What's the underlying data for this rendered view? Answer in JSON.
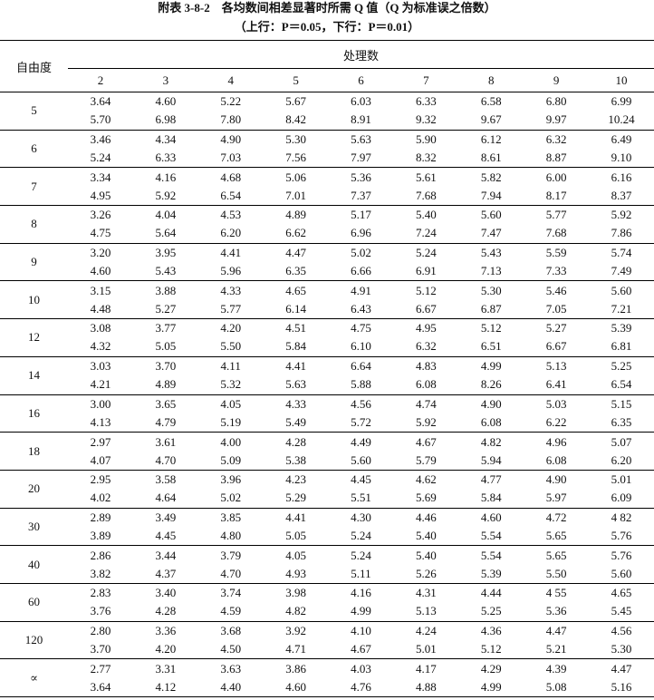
{
  "title": "附表 3-8-2　各均数间相差显著时所需 Q 值（Q 为标准误之倍数）",
  "subtitle": "（上行：P＝0.05，下行：P＝0.01）",
  "table": {
    "row_header": "自由度",
    "group_header": "处理数",
    "columns": [
      "2",
      "3",
      "4",
      "5",
      "6",
      "7",
      "8",
      "9",
      "10"
    ],
    "rows": [
      {
        "df": "5",
        "upper": [
          "3.64",
          "4.60",
          "5.22",
          "5.67",
          "6.03",
          "6.33",
          "6.58",
          "6.80",
          "6.99"
        ],
        "lower": [
          "5.70",
          "6.98",
          "7.80",
          "8.42",
          "8.91",
          "9.32",
          "9.67",
          "9.97",
          "10.24"
        ]
      },
      {
        "df": "6",
        "upper": [
          "3.46",
          "4.34",
          "4.90",
          "5.30",
          "5.63",
          "5.90",
          "6.12",
          "6.32",
          "6.49"
        ],
        "lower": [
          "5.24",
          "6.33",
          "7.03",
          "7.56",
          "7.97",
          "8.32",
          "8.61",
          "8.87",
          "9.10"
        ]
      },
      {
        "df": "7",
        "upper": [
          "3.34",
          "4.16",
          "4.68",
          "5.06",
          "5.36",
          "5.61",
          "5.82",
          "6.00",
          "6.16"
        ],
        "lower": [
          "4.95",
          "5.92",
          "6.54",
          "7.01",
          "7.37",
          "7.68",
          "7.94",
          "8.17",
          "8.37"
        ]
      },
      {
        "df": "8",
        "upper": [
          "3.26",
          "4.04",
          "4.53",
          "4.89",
          "5.17",
          "5.40",
          "5.60",
          "5.77",
          "5.92"
        ],
        "lower": [
          "4.75",
          "5.64",
          "6.20",
          "6.62",
          "6.96",
          "7.24",
          "7.47",
          "7.68",
          "7.86"
        ]
      },
      {
        "df": "9",
        "upper": [
          "3.20",
          "3.95",
          "4.41",
          "4.47",
          "5.02",
          "5.24",
          "5.43",
          "5.59",
          "5.74"
        ],
        "lower": [
          "4.60",
          "5.43",
          "5.96",
          "6.35",
          "6.66",
          "6.91",
          "7.13",
          "7.33",
          "7.49"
        ]
      },
      {
        "df": "10",
        "upper": [
          "3.15",
          "3.88",
          "4.33",
          "4.65",
          "4.91",
          "5.12",
          "5.30",
          "5.46",
          "5.60"
        ],
        "lower": [
          "4.48",
          "5.27",
          "5.77",
          "6.14",
          "6.43",
          "6.67",
          "6.87",
          "7.05",
          "7.21"
        ]
      },
      {
        "df": "12",
        "upper": [
          "3.08",
          "3.77",
          "4.20",
          "4.51",
          "4.75",
          "4.95",
          "5.12",
          "5.27",
          "5.39"
        ],
        "lower": [
          "4.32",
          "5.05",
          "5.50",
          "5.84",
          "6.10",
          "6.32",
          "6.51",
          "6.67",
          "6.81"
        ]
      },
      {
        "df": "14",
        "upper": [
          "3.03",
          "3.70",
          "4.11",
          "4.41",
          "6.64",
          "4.83",
          "4.99",
          "5.13",
          "5.25"
        ],
        "lower": [
          "4.21",
          "4.89",
          "5.32",
          "5.63",
          "5.88",
          "6.08",
          "8.26",
          "6.41",
          "6.54"
        ]
      },
      {
        "df": "16",
        "upper": [
          "3.00",
          "3.65",
          "4.05",
          "4.33",
          "4.56",
          "4.74",
          "4.90",
          "5.03",
          "5.15"
        ],
        "lower": [
          "4.13",
          "4.79",
          "5.19",
          "5.49",
          "5.72",
          "5.92",
          "6.08",
          "6.22",
          "6.35"
        ]
      },
      {
        "df": "18",
        "upper": [
          "2.97",
          "3.61",
          "4.00",
          "4.28",
          "4.49",
          "4.67",
          "4.82",
          "4.96",
          "5.07"
        ],
        "lower": [
          "4.07",
          "4.70",
          "5.09",
          "5.38",
          "5.60",
          "5.79",
          "5.94",
          "6.08",
          "6.20"
        ]
      },
      {
        "df": "20",
        "upper": [
          "2.95",
          "3.58",
          "3.96",
          "4.23",
          "4.45",
          "4.62",
          "4.77",
          "4.90",
          "5.01"
        ],
        "lower": [
          "4.02",
          "4.64",
          "5.02",
          "5.29",
          "5.51",
          "5.69",
          "5.84",
          "5.97",
          "6.09"
        ]
      },
      {
        "df": "30",
        "upper": [
          "2.89",
          "3.49",
          "3.85",
          "4.41",
          "4.30",
          "4.46",
          "4.60",
          "4.72",
          "4 82"
        ],
        "lower": [
          "3.89",
          "4.45",
          "4.80",
          "5.05",
          "5.24",
          "5.40",
          "5.54",
          "5.65",
          "5.76"
        ]
      },
      {
        "df": "40",
        "upper": [
          "2.86",
          "3.44",
          "3.79",
          "4.05",
          "5.24",
          "5.40",
          "5.54",
          "5.65",
          "5.76"
        ],
        "lower": [
          "3.82",
          "4.37",
          "4.70",
          "4.93",
          "5.11",
          "5.26",
          "5.39",
          "5.50",
          "5.60"
        ]
      },
      {
        "df": "60",
        "upper": [
          "2.83",
          "3.40",
          "3.74",
          "3.98",
          "4.16",
          "4.31",
          "4.44",
          "4 55",
          "4.65"
        ],
        "lower": [
          "3.76",
          "4.28",
          "4.59",
          "4.82",
          "4.99",
          "5.13",
          "5.25",
          "5.36",
          "5.45"
        ]
      },
      {
        "df": "120",
        "upper": [
          "2.80",
          "3.36",
          "3.68",
          "3.92",
          "4.10",
          "4.24",
          "4.36",
          "4.47",
          "4.56"
        ],
        "lower": [
          "3.70",
          "4.20",
          "4.50",
          "4.71",
          "4.67",
          "5.01",
          "5.12",
          "5.21",
          "5.30"
        ]
      },
      {
        "df": "∝",
        "upper": [
          "2.77",
          "3.31",
          "3.63",
          "3.86",
          "4.03",
          "4.17",
          "4.29",
          "4.39",
          "4.47"
        ],
        "lower": [
          "3.64",
          "4.12",
          "4.40",
          "4.60",
          "4.76",
          "4.88",
          "4.99",
          "5.08",
          "5.16"
        ]
      }
    ]
  }
}
